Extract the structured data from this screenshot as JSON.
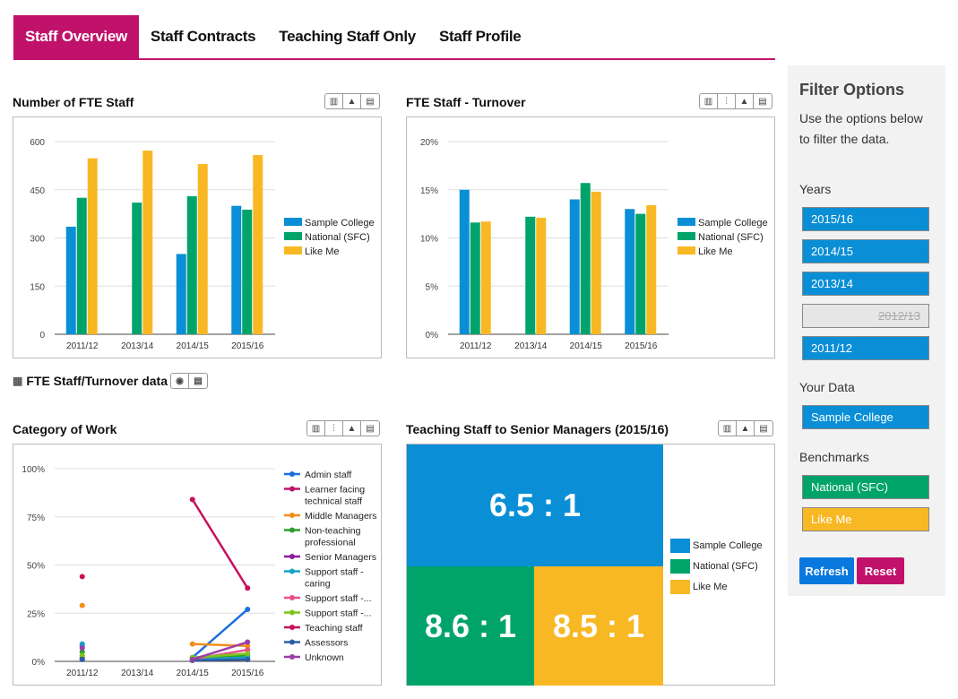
{
  "tabs": [
    {
      "label": "Staff Overview",
      "active": true
    },
    {
      "label": "Staff Contracts",
      "active": false
    },
    {
      "label": "Teaching Staff Only",
      "active": false
    },
    {
      "label": "Staff Profile",
      "active": false
    }
  ],
  "colors": {
    "sample": "#0a8fd6",
    "national": "#00a46a",
    "likeme": "#f8b824",
    "brand": "#c0126a"
  },
  "panels": {
    "fte_title": "Number of FTE Staff",
    "turnover_title": "FTE Staff - Turnover",
    "category_title": "Category of Work",
    "ratio_title": "Teaching Staff to Senior Managers (2015/16)",
    "data_link": "FTE Staff/Turnover data"
  },
  "legend_main": [
    "Sample College",
    "National (SFC)",
    "Like Me"
  ],
  "chart_data": [
    {
      "type": "bar",
      "id": "fte",
      "categories": [
        "2011/12",
        "2013/14",
        "2014/15",
        "2015/16"
      ],
      "series": [
        {
          "name": "Sample College",
          "values": [
            335,
            null,
            250,
            400
          ]
        },
        {
          "name": "National (SFC)",
          "values": [
            425,
            410,
            430,
            388
          ]
        },
        {
          "name": "Like Me",
          "values": [
            548,
            572,
            530,
            558
          ]
        }
      ],
      "yticks": [
        "0",
        "150",
        "300",
        "450",
        "600"
      ],
      "ylim": [
        0,
        600
      ]
    },
    {
      "type": "bar",
      "id": "turnover",
      "categories": [
        "2011/12",
        "2013/14",
        "2014/15",
        "2015/16"
      ],
      "series": [
        {
          "name": "Sample College",
          "values": [
            15.0,
            null,
            14.0,
            13.0
          ]
        },
        {
          "name": "National (SFC)",
          "values": [
            11.6,
            12.2,
            15.7,
            12.5
          ]
        },
        {
          "name": "Like Me",
          "values": [
            11.7,
            12.1,
            14.8,
            13.4
          ]
        }
      ],
      "yticks": [
        "0%",
        "5%",
        "10%",
        "15%",
        "20%"
      ],
      "ylim": [
        0,
        20
      ]
    },
    {
      "type": "line",
      "id": "category",
      "categories": [
        "2011/12",
        "2013/14",
        "2014/15",
        "2015/16"
      ],
      "yticks": [
        "0%",
        "25%",
        "50%",
        "75%",
        "100%"
      ],
      "ylim": [
        0,
        100
      ],
      "series": [
        {
          "name": "Admin staff",
          "color": "#1a6fdf",
          "values": [
            8,
            null,
            2,
            27
          ]
        },
        {
          "name": "Learner facing technical staff",
          "color": "#c0126a",
          "values": [
            1,
            null,
            0.5,
            1
          ]
        },
        {
          "name": "Middle Managers",
          "color": "#f28e1c",
          "values": [
            29,
            null,
            9,
            8
          ]
        },
        {
          "name": "Non-teaching professional",
          "color": "#2aa02a",
          "values": [
            5,
            null,
            2,
            3
          ]
        },
        {
          "name": "Senior Managers",
          "color": "#8e1a9e",
          "values": [
            2,
            null,
            1,
            1
          ]
        },
        {
          "name": "Support staff - caring",
          "color": "#17a2c8",
          "values": [
            9,
            null,
            1,
            2
          ]
        },
        {
          "name": "Support staff -...",
          "color": "#e8508a",
          "values": [
            1,
            null,
            1,
            6
          ]
        },
        {
          "name": "Support staff -...",
          "color": "#7fc41c",
          "values": [
            3,
            null,
            2,
            4
          ]
        },
        {
          "name": "Teaching staff",
          "color": "#c8105c",
          "values": [
            44,
            null,
            84,
            38
          ]
        },
        {
          "name": "Assessors",
          "color": "#2a5fa8",
          "values": [
            1,
            null,
            0.5,
            1
          ]
        },
        {
          "name": "Unknown",
          "color": "#9b3fa8",
          "values": [
            7,
            null,
            1,
            10
          ]
        }
      ],
      "legend_display": [
        [
          "Admin staff"
        ],
        [
          "Learner facing",
          "technical staff"
        ],
        [
          "Middle Managers"
        ],
        [
          "Non-teaching",
          "professional"
        ],
        [
          "Senior Managers"
        ],
        [
          "Support staff -",
          "caring"
        ],
        [
          "Support staff -..."
        ],
        [
          "Support staff -..."
        ],
        [
          "Teaching staff"
        ],
        [
          "Assessors"
        ],
        [
          "Unknown"
        ]
      ]
    },
    {
      "type": "treemap",
      "id": "ratio",
      "tiles": [
        {
          "name": "Sample College",
          "label": "6.5 : 1",
          "value": 6.5
        },
        {
          "name": "National (SFC)",
          "label": "8.6 : 1",
          "value": 8.6
        },
        {
          "name": "Like Me",
          "label": "8.5 : 1",
          "value": 8.5
        }
      ]
    }
  ],
  "sidebar": {
    "title": "Filter Options",
    "description": "Use the options below to filter the data.",
    "years_label": "Years",
    "years": [
      {
        "label": "2015/16",
        "selected": true
      },
      {
        "label": "2014/15",
        "selected": true
      },
      {
        "label": "2013/14",
        "selected": true
      },
      {
        "label": "2012/13",
        "selected": false
      },
      {
        "label": "2011/12",
        "selected": true
      }
    ],
    "your_data_label": "Your Data",
    "your_data": "Sample College",
    "benchmarks_label": "Benchmarks",
    "benchmarks": [
      "National (SFC)",
      "Like Me"
    ],
    "refresh": "Refresh",
    "reset": "Reset"
  }
}
